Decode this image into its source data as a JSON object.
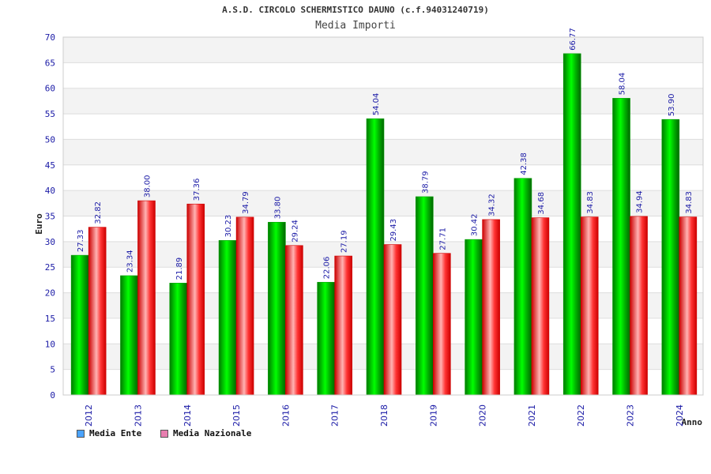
{
  "chart_data": {
    "type": "bar",
    "title": "A.S.D. CIRCOLO SCHERMISTICO DAUNO (c.f.94031240719)",
    "subtitle": "Media Importi",
    "xlabel": "Anno",
    "ylabel": "Euro",
    "ylim": [
      0,
      70
    ],
    "yticks": [
      0,
      5,
      10,
      15,
      20,
      25,
      30,
      35,
      40,
      45,
      50,
      55,
      60,
      65,
      70
    ],
    "categories": [
      "2012",
      "2013",
      "2014",
      "2015",
      "2016",
      "2017",
      "2018",
      "2019",
      "2020",
      "2021",
      "2022",
      "2023",
      "2024"
    ],
    "series": [
      {
        "name": "Media Ente",
        "color": "#00cc00",
        "legend_color": "#4aa3ff",
        "values": [
          27.33,
          23.34,
          21.89,
          30.23,
          33.8,
          22.06,
          54.04,
          38.79,
          30.42,
          42.38,
          66.77,
          58.04,
          53.9
        ],
        "labels": [
          "27.33",
          "23.34",
          "21.89",
          "30.23",
          "33.80",
          "22.06",
          "54.04",
          "38.79",
          "30.42",
          "42.38",
          "66.77",
          "58.04",
          "53.90"
        ]
      },
      {
        "name": "Media Nazionale",
        "color": "#ff1a1a",
        "legend_color": "#e87fb0",
        "values": [
          32.82,
          38.0,
          37.36,
          34.79,
          29.24,
          27.19,
          29.43,
          27.71,
          34.32,
          34.68,
          34.83,
          34.94,
          34.83
        ],
        "labels": [
          "32.82",
          "38.00",
          "37.36",
          "34.79",
          "29.24",
          "27.19",
          "29.43",
          "27.71",
          "34.32",
          "34.68",
          "34.83",
          "34.94",
          "34.83"
        ]
      }
    ],
    "grid": true,
    "legend_position": "bottom-left"
  }
}
